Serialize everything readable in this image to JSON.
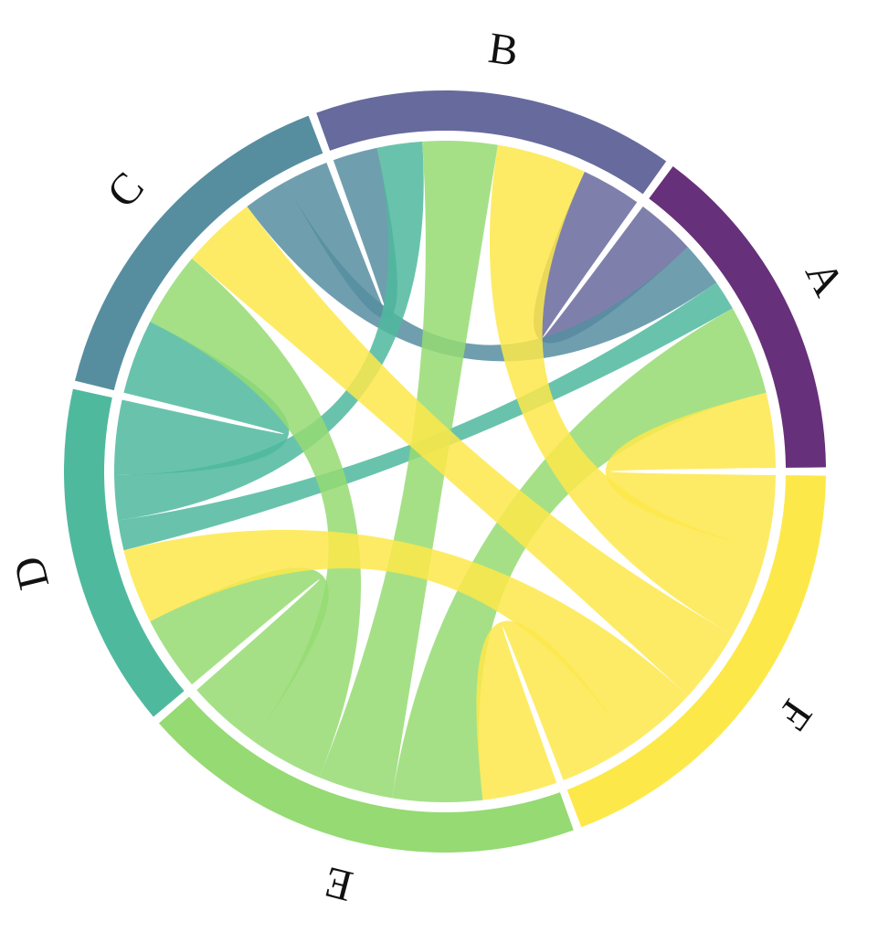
{
  "chart_data": {
    "type": "chord",
    "nodes": [
      {
        "name": "A",
        "color": "#67307A"
      },
      {
        "name": "B",
        "color": "#676A9C"
      },
      {
        "name": "C",
        "color": "#568EA0"
      },
      {
        "name": "D",
        "color": "#4FB99E"
      },
      {
        "name": "E",
        "color": "#95DA72"
      },
      {
        "name": "F",
        "color": "#FDE84A"
      }
    ],
    "matrix": [
      [
        0,
        4,
        3,
        2,
        6,
        5
      ],
      [
        4,
        0,
        3,
        3,
        5,
        6
      ],
      [
        3,
        3,
        0,
        5,
        5,
        5
      ],
      [
        2,
        3,
        5,
        0,
        5,
        5
      ],
      [
        6,
        5,
        5,
        5,
        0,
        5
      ],
      [
        5,
        6,
        5,
        5,
        5,
        0
      ]
    ],
    "ribbon_color": "max_flow_end",
    "ribbon_opacity": 0.85
  }
}
